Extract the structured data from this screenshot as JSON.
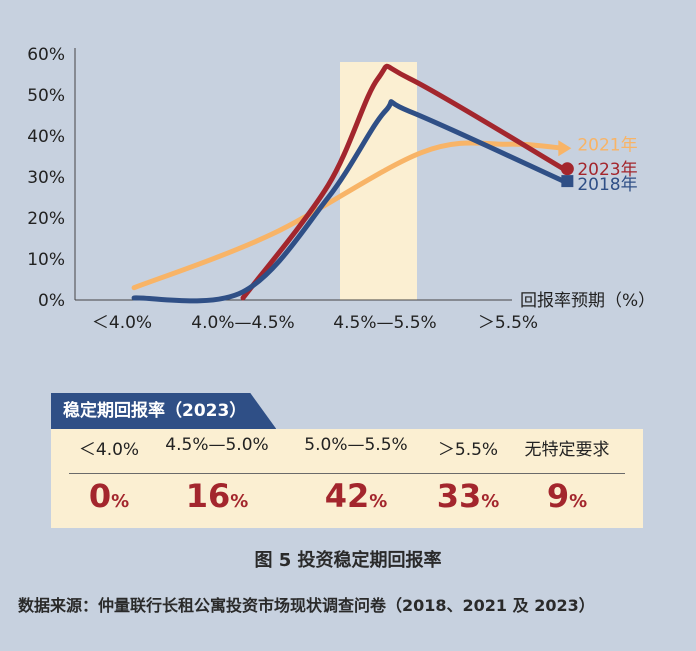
{
  "chart_data": {
    "type": "line",
    "categories": [
      "＜4.0%",
      "4.0%—4.5%",
      "4.5%—5.5%",
      "＞5.5%"
    ],
    "x_axis_title": "回报率预期（%）",
    "y_ticks": [
      "0%",
      "10%",
      "20%",
      "30%",
      "40%",
      "50%",
      "60%"
    ],
    "ylim": [
      0,
      60
    ],
    "highlight_band": "4.5%—5.5%",
    "series": [
      {
        "name": "2021年",
        "color": "#f8b467",
        "marker": "arrow",
        "points": [
          [
            0.1,
            3
          ],
          [
            1.2,
            16
          ],
          [
            2.3,
            36
          ],
          [
            3.0,
            38
          ],
          [
            3.45,
            37
          ]
        ]
      },
      {
        "name": "2023年",
        "color": "#a3262d",
        "marker": "circle",
        "points": [
          [
            1.0,
            0.5
          ],
          [
            1.6,
            28
          ],
          [
            1.95,
            54
          ],
          [
            2.2,
            54
          ],
          [
            3.45,
            32
          ]
        ]
      },
      {
        "name": "2018年",
        "color": "#2f4f86",
        "marker": "square",
        "points": [
          [
            0.1,
            0.5
          ],
          [
            1.0,
            2
          ],
          [
            1.6,
            25
          ],
          [
            2.0,
            46
          ],
          [
            2.2,
            46
          ],
          [
            3.45,
            29
          ]
        ]
      }
    ]
  },
  "table": {
    "title": "稳定期回报率（2023）",
    "columns": [
      {
        "label": "＜4.0%",
        "value": "0",
        "unit": "%"
      },
      {
        "label": "4.5%—5.0%",
        "value": "16",
        "unit": "%"
      },
      {
        "label": "5.0%—5.5%",
        "value": "42",
        "unit": "%"
      },
      {
        "label": "＞5.5%",
        "value": "33",
        "unit": "%"
      },
      {
        "label": "无特定要求",
        "value": "9",
        "unit": "%"
      }
    ]
  },
  "caption": "图 5    投资稳定期回报率",
  "source": "数据来源：仲量联行长租公寓投资市场现状调查问卷（2018、2021 及 2023）"
}
